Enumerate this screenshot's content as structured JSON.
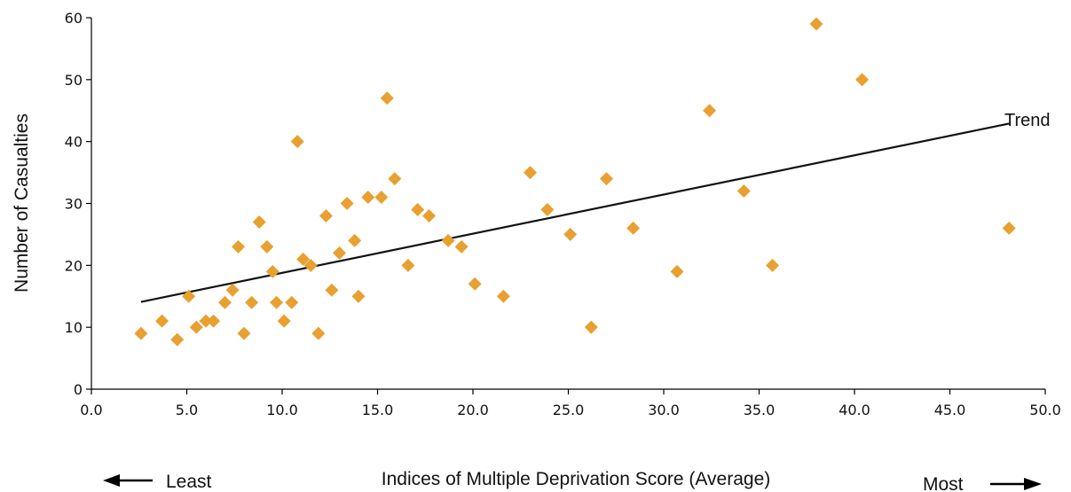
{
  "chart_data": {
    "type": "scatter",
    "xlabel": "Indices of Multiple Deprivation Score (Average)",
    "ylabel": "Number of Casualties",
    "xlim": [
      0,
      50
    ],
    "ylim": [
      0,
      60
    ],
    "x_ticks": [
      "0.0",
      "5.0",
      "10.0",
      "15.0",
      "20.0",
      "25.0",
      "30.0",
      "35.0",
      "40.0",
      "45.0",
      "50.0"
    ],
    "y_ticks": [
      "0",
      "10",
      "20",
      "30",
      "40",
      "50",
      "60"
    ],
    "annotations": {
      "least": "Least",
      "most": "Most",
      "trend": "Trend"
    },
    "marker_color": "#E8A030",
    "trend_color": "#111111",
    "trend": {
      "x": [
        2.6,
        48.1
      ],
      "y": [
        14.1,
        42.9
      ]
    },
    "series": [
      {
        "points": [
          [
            2.6,
            9
          ],
          [
            3.7,
            11
          ],
          [
            4.5,
            8
          ],
          [
            5.1,
            15
          ],
          [
            5.5,
            10
          ],
          [
            6.0,
            11
          ],
          [
            6.4,
            11
          ],
          [
            7.0,
            14
          ],
          [
            7.4,
            16
          ],
          [
            7.7,
            23
          ],
          [
            8.0,
            9
          ],
          [
            8.4,
            14
          ],
          [
            8.8,
            27
          ],
          [
            9.2,
            23
          ],
          [
            9.5,
            19
          ],
          [
            9.7,
            14
          ],
          [
            10.1,
            11
          ],
          [
            10.5,
            14
          ],
          [
            10.8,
            40
          ],
          [
            11.1,
            21
          ],
          [
            11.5,
            20
          ],
          [
            11.9,
            9
          ],
          [
            12.3,
            28
          ],
          [
            12.6,
            16
          ],
          [
            13.0,
            22
          ],
          [
            13.4,
            30
          ],
          [
            13.8,
            24
          ],
          [
            14.0,
            15
          ],
          [
            14.5,
            31
          ],
          [
            15.2,
            31
          ],
          [
            15.5,
            47
          ],
          [
            15.9,
            34
          ],
          [
            16.6,
            20
          ],
          [
            17.1,
            29
          ],
          [
            17.7,
            28
          ],
          [
            18.7,
            24
          ],
          [
            19.4,
            23
          ],
          [
            20.1,
            17
          ],
          [
            21.6,
            15
          ],
          [
            23.0,
            35
          ],
          [
            23.9,
            29
          ],
          [
            25.1,
            25
          ],
          [
            26.2,
            10
          ],
          [
            27.0,
            34
          ],
          [
            28.4,
            26
          ],
          [
            30.7,
            19
          ],
          [
            32.4,
            45
          ],
          [
            34.2,
            32
          ],
          [
            35.7,
            20
          ],
          [
            38.0,
            59
          ],
          [
            40.4,
            50
          ],
          [
            48.1,
            26
          ]
        ]
      }
    ]
  }
}
